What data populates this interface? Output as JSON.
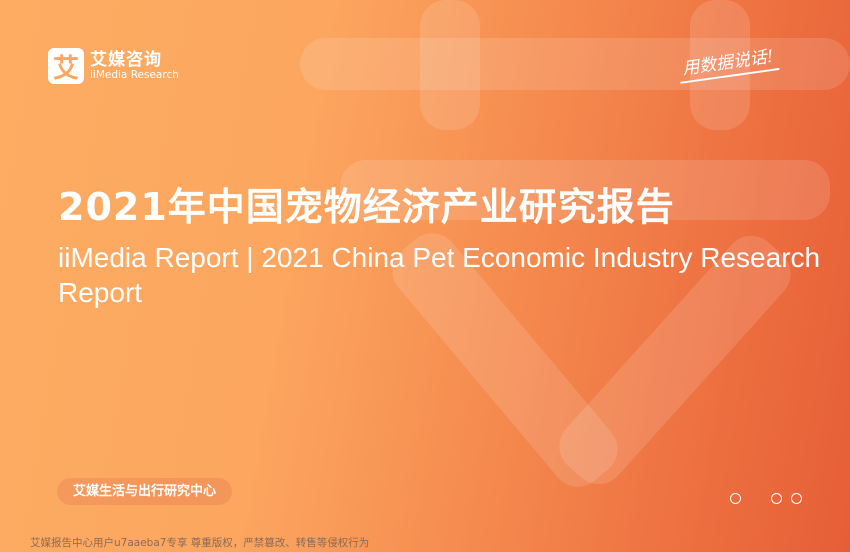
{
  "brand": {
    "logo_mark": "艾",
    "name_cn": "艾媒咨询",
    "name_en": "iiMedia Research"
  },
  "slogan": "用数据说话!",
  "title": "2021年中国宠物经济产业研究报告",
  "subtitle": "iiMedia Report | 2021 China Pet Economic Industry Research Report",
  "research_center": "艾媒生活与出行研究中心",
  "footer": "艾媒报告中心用户u7aaeba7专享 尊重版权，严禁篡改、转售等侵权行为",
  "colors": {
    "gradient_start": "#fdac62",
    "gradient_end": "#e65e37"
  },
  "pager": {
    "dots": 3
  }
}
